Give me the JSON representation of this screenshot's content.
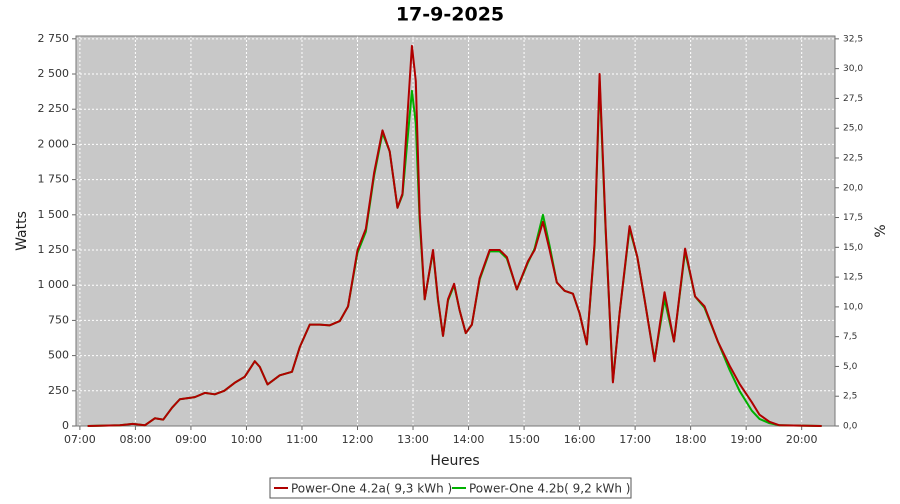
{
  "chart_data": {
    "type": "line",
    "title": "17-9-2025",
    "x_label": "Heures",
    "y_label": "Watts",
    "y2_label": "%",
    "x": [
      7.14,
      7.72,
      7.95,
      8.17,
      8.35,
      8.5,
      8.66,
      8.8,
      9.07,
      9.25,
      9.43,
      9.6,
      9.8,
      9.97,
      10.15,
      10.24,
      10.38,
      10.6,
      10.82,
      10.96,
      11.14,
      11.32,
      11.5,
      11.68,
      11.83,
      12.0,
      12.15,
      12.3,
      12.45,
      12.58,
      12.72,
      12.81,
      12.98,
      13.05,
      13.12,
      13.21,
      13.36,
      13.45,
      13.54,
      13.63,
      13.74,
      13.84,
      13.95,
      14.06,
      14.2,
      14.38,
      14.56,
      14.69,
      14.87,
      15.07,
      15.19,
      15.34,
      15.46,
      15.59,
      15.73,
      15.88,
      16.0,
      16.13,
      16.27,
      16.36,
      16.47,
      16.6,
      16.72,
      16.9,
      17.04,
      17.17,
      17.35,
      17.53,
      17.7,
      17.9,
      18.08,
      18.25,
      18.49,
      18.7,
      18.88,
      19.1,
      19.24,
      19.42,
      19.6,
      20.36
    ],
    "series": [
      {
        "name": "Power-One 4.2a( 9,3 kWh )",
        "color": "#b00000",
        "values": [
          0,
          5,
          15,
          5,
          55,
          45,
          130,
          190,
          205,
          235,
          225,
          250,
          310,
          350,
          460,
          420,
          295,
          360,
          385,
          560,
          720,
          720,
          715,
          745,
          850,
          1250,
          1400,
          1800,
          2100,
          1950,
          1550,
          1650,
          2700,
          2450,
          1500,
          900,
          1250,
          900,
          640,
          900,
          1010,
          820,
          660,
          720,
          1050,
          1250,
          1250,
          1200,
          970,
          1170,
          1250,
          1450,
          1250,
          1020,
          960,
          940,
          800,
          580,
          1300,
          2500,
          1400,
          310,
          800,
          1420,
          1200,
          900,
          460,
          950,
          600,
          1260,
          920,
          850,
          600,
          430,
          300,
          170,
          80,
          30,
          5,
          0
        ]
      },
      {
        "name": "Power-One 4.2b( 9,2 kWh )",
        "color": "#00b000",
        "values": [
          0,
          5,
          15,
          5,
          55,
          45,
          130,
          190,
          205,
          235,
          225,
          250,
          310,
          350,
          460,
          420,
          295,
          360,
          385,
          560,
          720,
          720,
          715,
          745,
          850,
          1230,
          1380,
          1780,
          2080,
          1950,
          1550,
          1640,
          2380,
          2150,
          1450,
          900,
          1240,
          890,
          640,
          890,
          1000,
          820,
          660,
          720,
          1040,
          1240,
          1240,
          1190,
          970,
          1160,
          1260,
          1500,
          1280,
          1020,
          960,
          940,
          800,
          580,
          1280,
          2450,
          1380,
          320,
          800,
          1400,
          1200,
          900,
          470,
          900,
          600,
          1240,
          920,
          840,
          600,
          400,
          250,
          110,
          50,
          20,
          5,
          0
        ]
      }
    ],
    "xlim": [
      6.93,
      20.6
    ],
    "xticks": [
      {
        "value": 7,
        "label": "07:00"
      },
      {
        "value": 8,
        "label": "08:00"
      },
      {
        "value": 9,
        "label": "09:00"
      },
      {
        "value": 10,
        "label": "10:00"
      },
      {
        "value": 11,
        "label": "11:00"
      },
      {
        "value": 12,
        "label": "12:00"
      },
      {
        "value": 13,
        "label": "13:00"
      },
      {
        "value": 14,
        "label": "14:00"
      },
      {
        "value": 15,
        "label": "15:00"
      },
      {
        "value": 16,
        "label": "16:00"
      },
      {
        "value": 17,
        "label": "17:00"
      },
      {
        "value": 18,
        "label": "18:00"
      },
      {
        "value": 19,
        "label": "19:00"
      },
      {
        "value": 20,
        "label": "20:00"
      }
    ],
    "ylim": [
      0,
      2770
    ],
    "yticks": [
      0,
      250,
      500,
      750,
      {
        "value": 1000,
        "label": "1 000"
      },
      {
        "value": 1250,
        "label": "1 250"
      },
      {
        "value": 1500,
        "label": "1 500"
      },
      {
        "value": 1750,
        "label": "1 750"
      },
      {
        "value": 2000,
        "label": "2 000"
      },
      {
        "value": 2250,
        "label": "2 250"
      },
      {
        "value": 2500,
        "label": "2 500"
      },
      {
        "value": 2750,
        "label": "2 750"
      }
    ],
    "y2lim": [
      0,
      32.74
    ],
    "y2ticks": [
      {
        "value": 0,
        "label": "0,0"
      },
      {
        "value": 2.5,
        "label": "2,5"
      },
      {
        "value": 5,
        "label": "5,0"
      },
      {
        "value": 7.5,
        "label": "7,5"
      },
      {
        "value": 10,
        "label": "10,0"
      },
      {
        "value": 12.5,
        "label": "12,5"
      },
      {
        "value": 15,
        "label": "15,0"
      },
      {
        "value": 17.5,
        "label": "17,5"
      },
      {
        "value": 20,
        "label": "20,0"
      },
      {
        "value": 22.5,
        "label": "22,5"
      },
      {
        "value": 25,
        "label": "25,0"
      },
      {
        "value": 27.5,
        "label": "27,5"
      },
      {
        "value": 30,
        "label": "30,0"
      },
      {
        "value": 32.5,
        "label": "32,5"
      }
    ],
    "grid": true
  }
}
